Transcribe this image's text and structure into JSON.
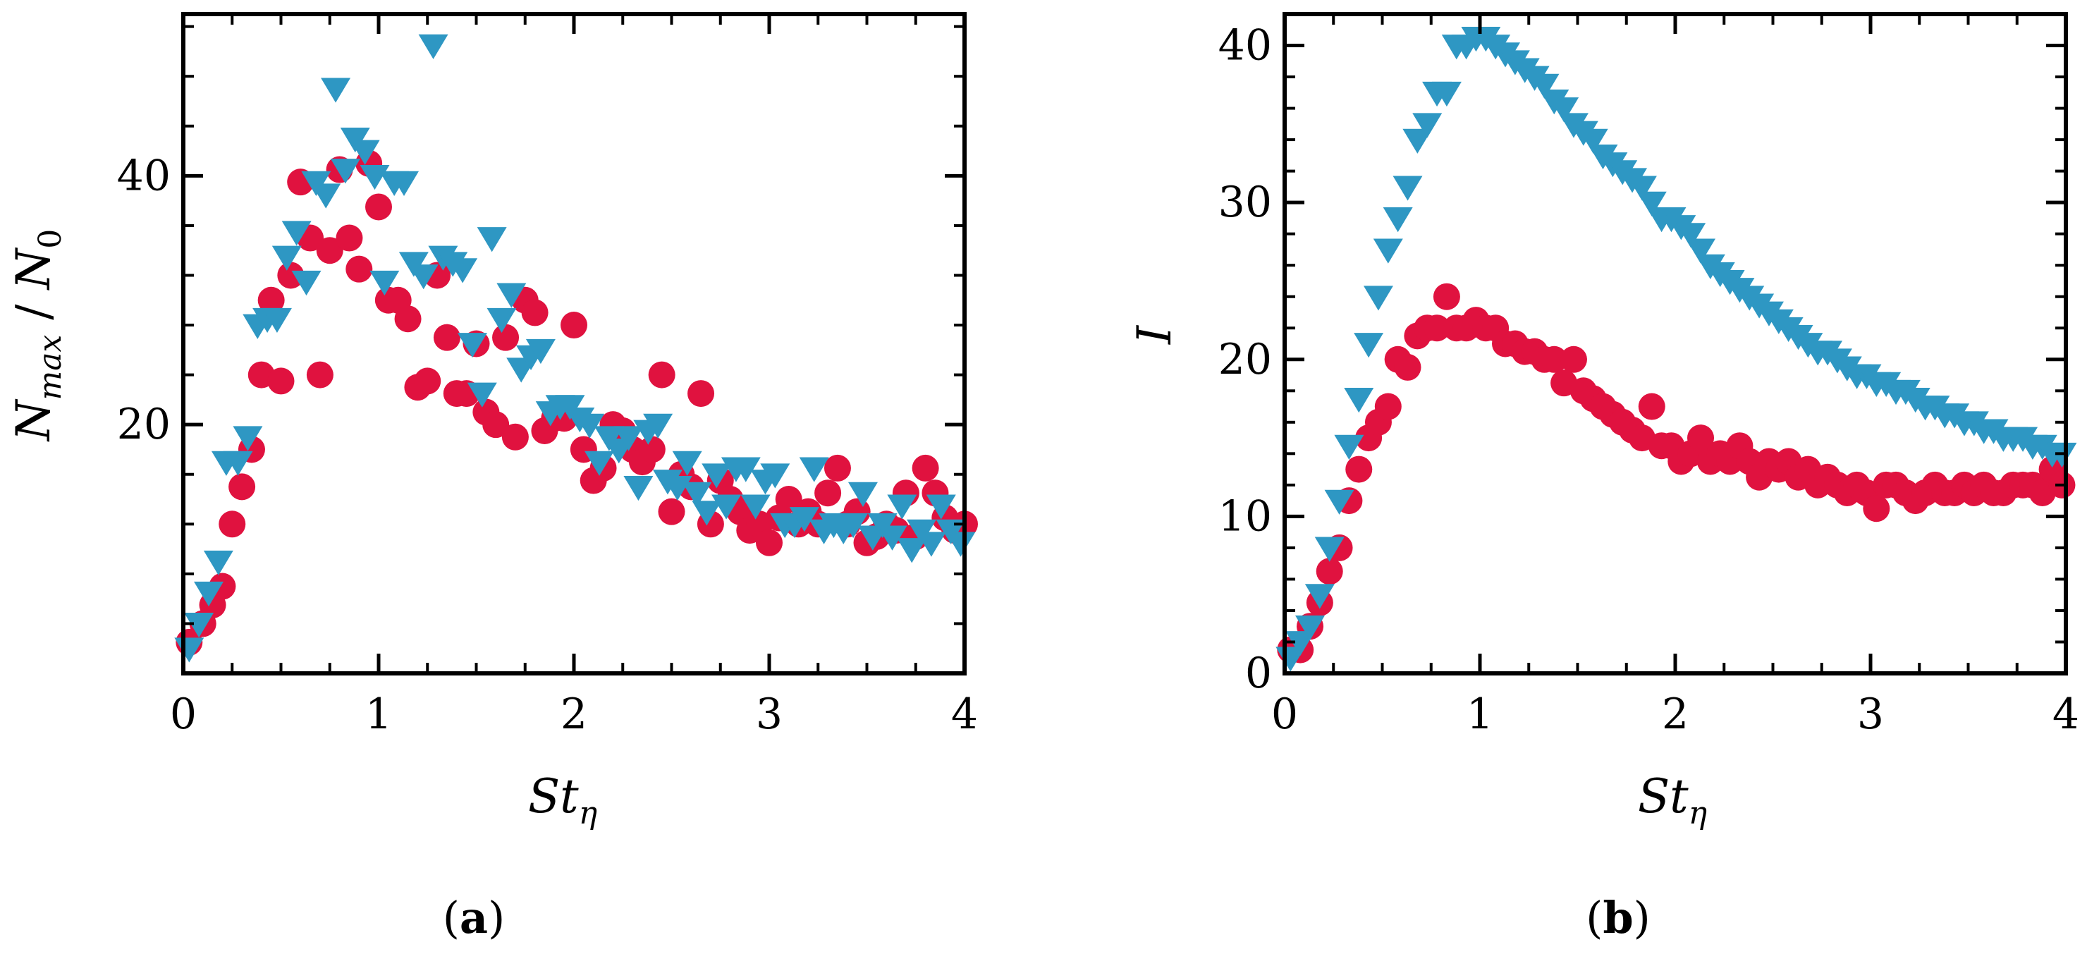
{
  "colors": {
    "series_circle": "#e0123f",
    "series_triangle": "#2e97c3",
    "axis": "#000000"
  },
  "chart_data": [
    {
      "type": "scatter",
      "panel_label": {
        "open": "(",
        "letter": "a",
        "close": ")"
      },
      "xlabel": {
        "base": "St",
        "sub": "η"
      },
      "ylabel": {
        "base": "N",
        "sub": "max",
        "mid": " / ",
        "base2": "N",
        "sub2": "0"
      },
      "xlim": [
        0,
        4
      ],
      "ylim": [
        0,
        53
      ],
      "xticks": [
        0,
        1,
        2,
        3,
        4
      ],
      "yticks": [
        20,
        40
      ],
      "series": [
        {
          "name": "circles",
          "marker": "circle",
          "x": [
            0.03,
            0.1,
            0.15,
            0.2,
            0.25,
            0.3,
            0.35,
            0.4,
            0.45,
            0.5,
            0.55,
            0.6,
            0.65,
            0.7,
            0.75,
            0.8,
            0.85,
            0.9,
            0.95,
            1.0,
            1.05,
            1.1,
            1.15,
            1.2,
            1.25,
            1.3,
            1.35,
            1.4,
            1.45,
            1.5,
            1.55,
            1.6,
            1.65,
            1.7,
            1.75,
            1.8,
            1.85,
            1.9,
            1.95,
            2.0,
            2.05,
            2.1,
            2.15,
            2.2,
            2.25,
            2.3,
            2.35,
            2.4,
            2.45,
            2.5,
            2.55,
            2.6,
            2.65,
            2.7,
            2.75,
            2.8,
            2.85,
            2.9,
            2.95,
            3.0,
            3.05,
            3.1,
            3.15,
            3.2,
            3.25,
            3.3,
            3.35,
            3.4,
            3.45,
            3.5,
            3.55,
            3.6,
            3.65,
            3.7,
            3.75,
            3.8,
            3.85,
            3.9,
            3.95,
            4.0
          ],
          "y": [
            2.5,
            4,
            5.5,
            7,
            12,
            15,
            18,
            24,
            30,
            23.5,
            32,
            39.5,
            35,
            24,
            34,
            40.5,
            35,
            32.5,
            41,
            37.5,
            30,
            30,
            28.5,
            23,
            23.5,
            32,
            27,
            22.5,
            22.5,
            26.5,
            21,
            20,
            27,
            19,
            30,
            29,
            19.5,
            20.5,
            20.5,
            28,
            18,
            15.5,
            16.5,
            20,
            19.5,
            18,
            17,
            18,
            24,
            13,
            16,
            15,
            22.5,
            12,
            15.5,
            14,
            13,
            11.5,
            12,
            10.5,
            12.5,
            14,
            12,
            13,
            12,
            14.5,
            16.5,
            12,
            13,
            10.5,
            11,
            12,
            11.5,
            14.5,
            11,
            16.5,
            14.5,
            12.5,
            11.5,
            12
          ]
        },
        {
          "name": "triangles",
          "marker": "triangle-down",
          "x": [
            0.03,
            0.08,
            0.13,
            0.18,
            0.22,
            0.28,
            0.33,
            0.38,
            0.43,
            0.48,
            0.53,
            0.58,
            0.63,
            0.68,
            0.73,
            0.78,
            0.83,
            0.88,
            0.93,
            0.98,
            1.03,
            1.08,
            1.13,
            1.18,
            1.23,
            1.28,
            1.33,
            1.38,
            1.43,
            1.48,
            1.53,
            1.58,
            1.63,
            1.68,
            1.73,
            1.78,
            1.83,
            1.88,
            1.93,
            1.98,
            2.03,
            2.08,
            2.13,
            2.18,
            2.23,
            2.28,
            2.33,
            2.38,
            2.43,
            2.48,
            2.53,
            2.58,
            2.63,
            2.68,
            2.73,
            2.78,
            2.83,
            2.88,
            2.93,
            2.98,
            3.03,
            3.08,
            3.13,
            3.18,
            3.23,
            3.28,
            3.33,
            3.38,
            3.43,
            3.48,
            3.53,
            3.58,
            3.63,
            3.68,
            3.73,
            3.78,
            3.83,
            3.88,
            3.93,
            3.98
          ],
          "y": [
            2,
            4,
            6.5,
            9,
            17,
            17,
            19,
            28,
            28.5,
            28.5,
            33.5,
            35.5,
            31.5,
            39.5,
            38.5,
            47,
            40.5,
            43,
            42,
            40,
            31.5,
            39.5,
            39.5,
            33,
            32,
            50.5,
            33.5,
            33,
            32.5,
            26.5,
            22.5,
            35,
            28.5,
            30.5,
            24.5,
            25.5,
            26,
            21,
            21.5,
            21.5,
            20.5,
            20,
            17,
            19,
            18,
            19,
            15,
            19.5,
            20,
            15.5,
            15,
            17,
            14.5,
            13,
            16,
            13.5,
            16.5,
            16.5,
            13.5,
            15.5,
            16,
            12,
            12,
            12.5,
            16.5,
            11.5,
            12,
            11.5,
            12,
            14.5,
            11,
            12,
            11,
            13.5,
            10,
            11.5,
            10.5,
            13.5,
            11.5,
            10.5
          ]
        }
      ]
    },
    {
      "type": "scatter",
      "panel_label": {
        "open": "(",
        "letter": "b",
        "close": ")"
      },
      "xlabel": {
        "base": "St",
        "sub": "η"
      },
      "ylabel": {
        "base": "I"
      },
      "xlim": [
        0,
        4
      ],
      "ylim": [
        0,
        42
      ],
      "xticks": [
        0,
        1,
        2,
        3,
        4
      ],
      "yticks": [
        0,
        10,
        20,
        30,
        40
      ],
      "series": [
        {
          "name": "circles",
          "marker": "circle",
          "x": [
            0.03,
            0.08,
            0.13,
            0.18,
            0.23,
            0.28,
            0.33,
            0.38,
            0.43,
            0.48,
            0.53,
            0.58,
            0.63,
            0.68,
            0.73,
            0.78,
            0.83,
            0.88,
            0.93,
            0.98,
            1.03,
            1.08,
            1.13,
            1.18,
            1.23,
            1.28,
            1.33,
            1.38,
            1.43,
            1.48,
            1.53,
            1.58,
            1.63,
            1.68,
            1.73,
            1.78,
            1.83,
            1.88,
            1.93,
            1.98,
            2.03,
            2.08,
            2.13,
            2.18,
            2.23,
            2.28,
            2.33,
            2.38,
            2.43,
            2.48,
            2.53,
            2.58,
            2.63,
            2.68,
            2.73,
            2.78,
            2.83,
            2.88,
            2.93,
            2.98,
            3.03,
            3.08,
            3.13,
            3.18,
            3.23,
            3.28,
            3.33,
            3.38,
            3.43,
            3.48,
            3.53,
            3.58,
            3.63,
            3.68,
            3.73,
            3.78,
            3.83,
            3.88,
            3.93,
            3.98
          ],
          "y": [
            1.5,
            1.5,
            3,
            4.5,
            6.5,
            8,
            11,
            13,
            15,
            16,
            17,
            20,
            19.5,
            21.5,
            22,
            22,
            24,
            22,
            22,
            22.5,
            22,
            22,
            21,
            21,
            20.5,
            20.5,
            20,
            20,
            18.5,
            20,
            18,
            17.5,
            17,
            16.5,
            16,
            15.5,
            15,
            17,
            14.5,
            14.5,
            13.5,
            14,
            15,
            13.5,
            14,
            13.5,
            14.5,
            13.5,
            12.5,
            13.5,
            13,
            13.5,
            12.5,
            13,
            12,
            12.5,
            12,
            11.5,
            12,
            11.5,
            10.5,
            12,
            12,
            11.5,
            11,
            11.5,
            12,
            11.5,
            11.5,
            12,
            11.5,
            12,
            11.5,
            11.5,
            12,
            12,
            12,
            11.5,
            13,
            12
          ]
        },
        {
          "name": "triangles",
          "marker": "triangle-down",
          "x": [
            0.03,
            0.08,
            0.13,
            0.18,
            0.23,
            0.28,
            0.33,
            0.38,
            0.43,
            0.48,
            0.53,
            0.58,
            0.63,
            0.68,
            0.73,
            0.78,
            0.83,
            0.88,
            0.93,
            0.98,
            1.03,
            1.08,
            1.13,
            1.18,
            1.23,
            1.28,
            1.33,
            1.38,
            1.43,
            1.48,
            1.53,
            1.58,
            1.63,
            1.68,
            1.73,
            1.78,
            1.83,
            1.88,
            1.93,
            1.98,
            2.03,
            2.08,
            2.13,
            2.18,
            2.23,
            2.28,
            2.33,
            2.38,
            2.43,
            2.48,
            2.53,
            2.58,
            2.63,
            2.68,
            2.73,
            2.78,
            2.83,
            2.88,
            2.93,
            2.98,
            3.03,
            3.08,
            3.13,
            3.18,
            3.23,
            3.28,
            3.33,
            3.38,
            3.43,
            3.48,
            3.53,
            3.58,
            3.63,
            3.68,
            3.73,
            3.78,
            3.83,
            3.88,
            3.93,
            3.98
          ],
          "y": [
            1,
            2,
            3,
            5,
            8,
            11,
            14.5,
            17.5,
            21,
            24,
            27,
            29,
            31,
            34,
            35,
            37,
            37,
            40,
            40,
            40.5,
            40.5,
            40,
            39.5,
            39,
            38.5,
            38,
            37.5,
            36.5,
            36,
            35,
            34.5,
            34,
            33,
            32.5,
            32,
            31.5,
            31,
            30,
            29,
            29,
            28.5,
            28,
            27,
            26,
            25.5,
            25,
            24.5,
            24,
            23.5,
            23,
            22.5,
            22,
            21.5,
            21,
            20.5,
            20.5,
            20,
            19.5,
            19,
            19,
            18.5,
            18.5,
            18,
            18,
            17.5,
            17,
            17,
            16.5,
            16.5,
            16,
            16,
            15.5,
            15.5,
            15,
            15,
            15,
            14.5,
            14.5,
            14,
            14
          ]
        }
      ]
    }
  ]
}
